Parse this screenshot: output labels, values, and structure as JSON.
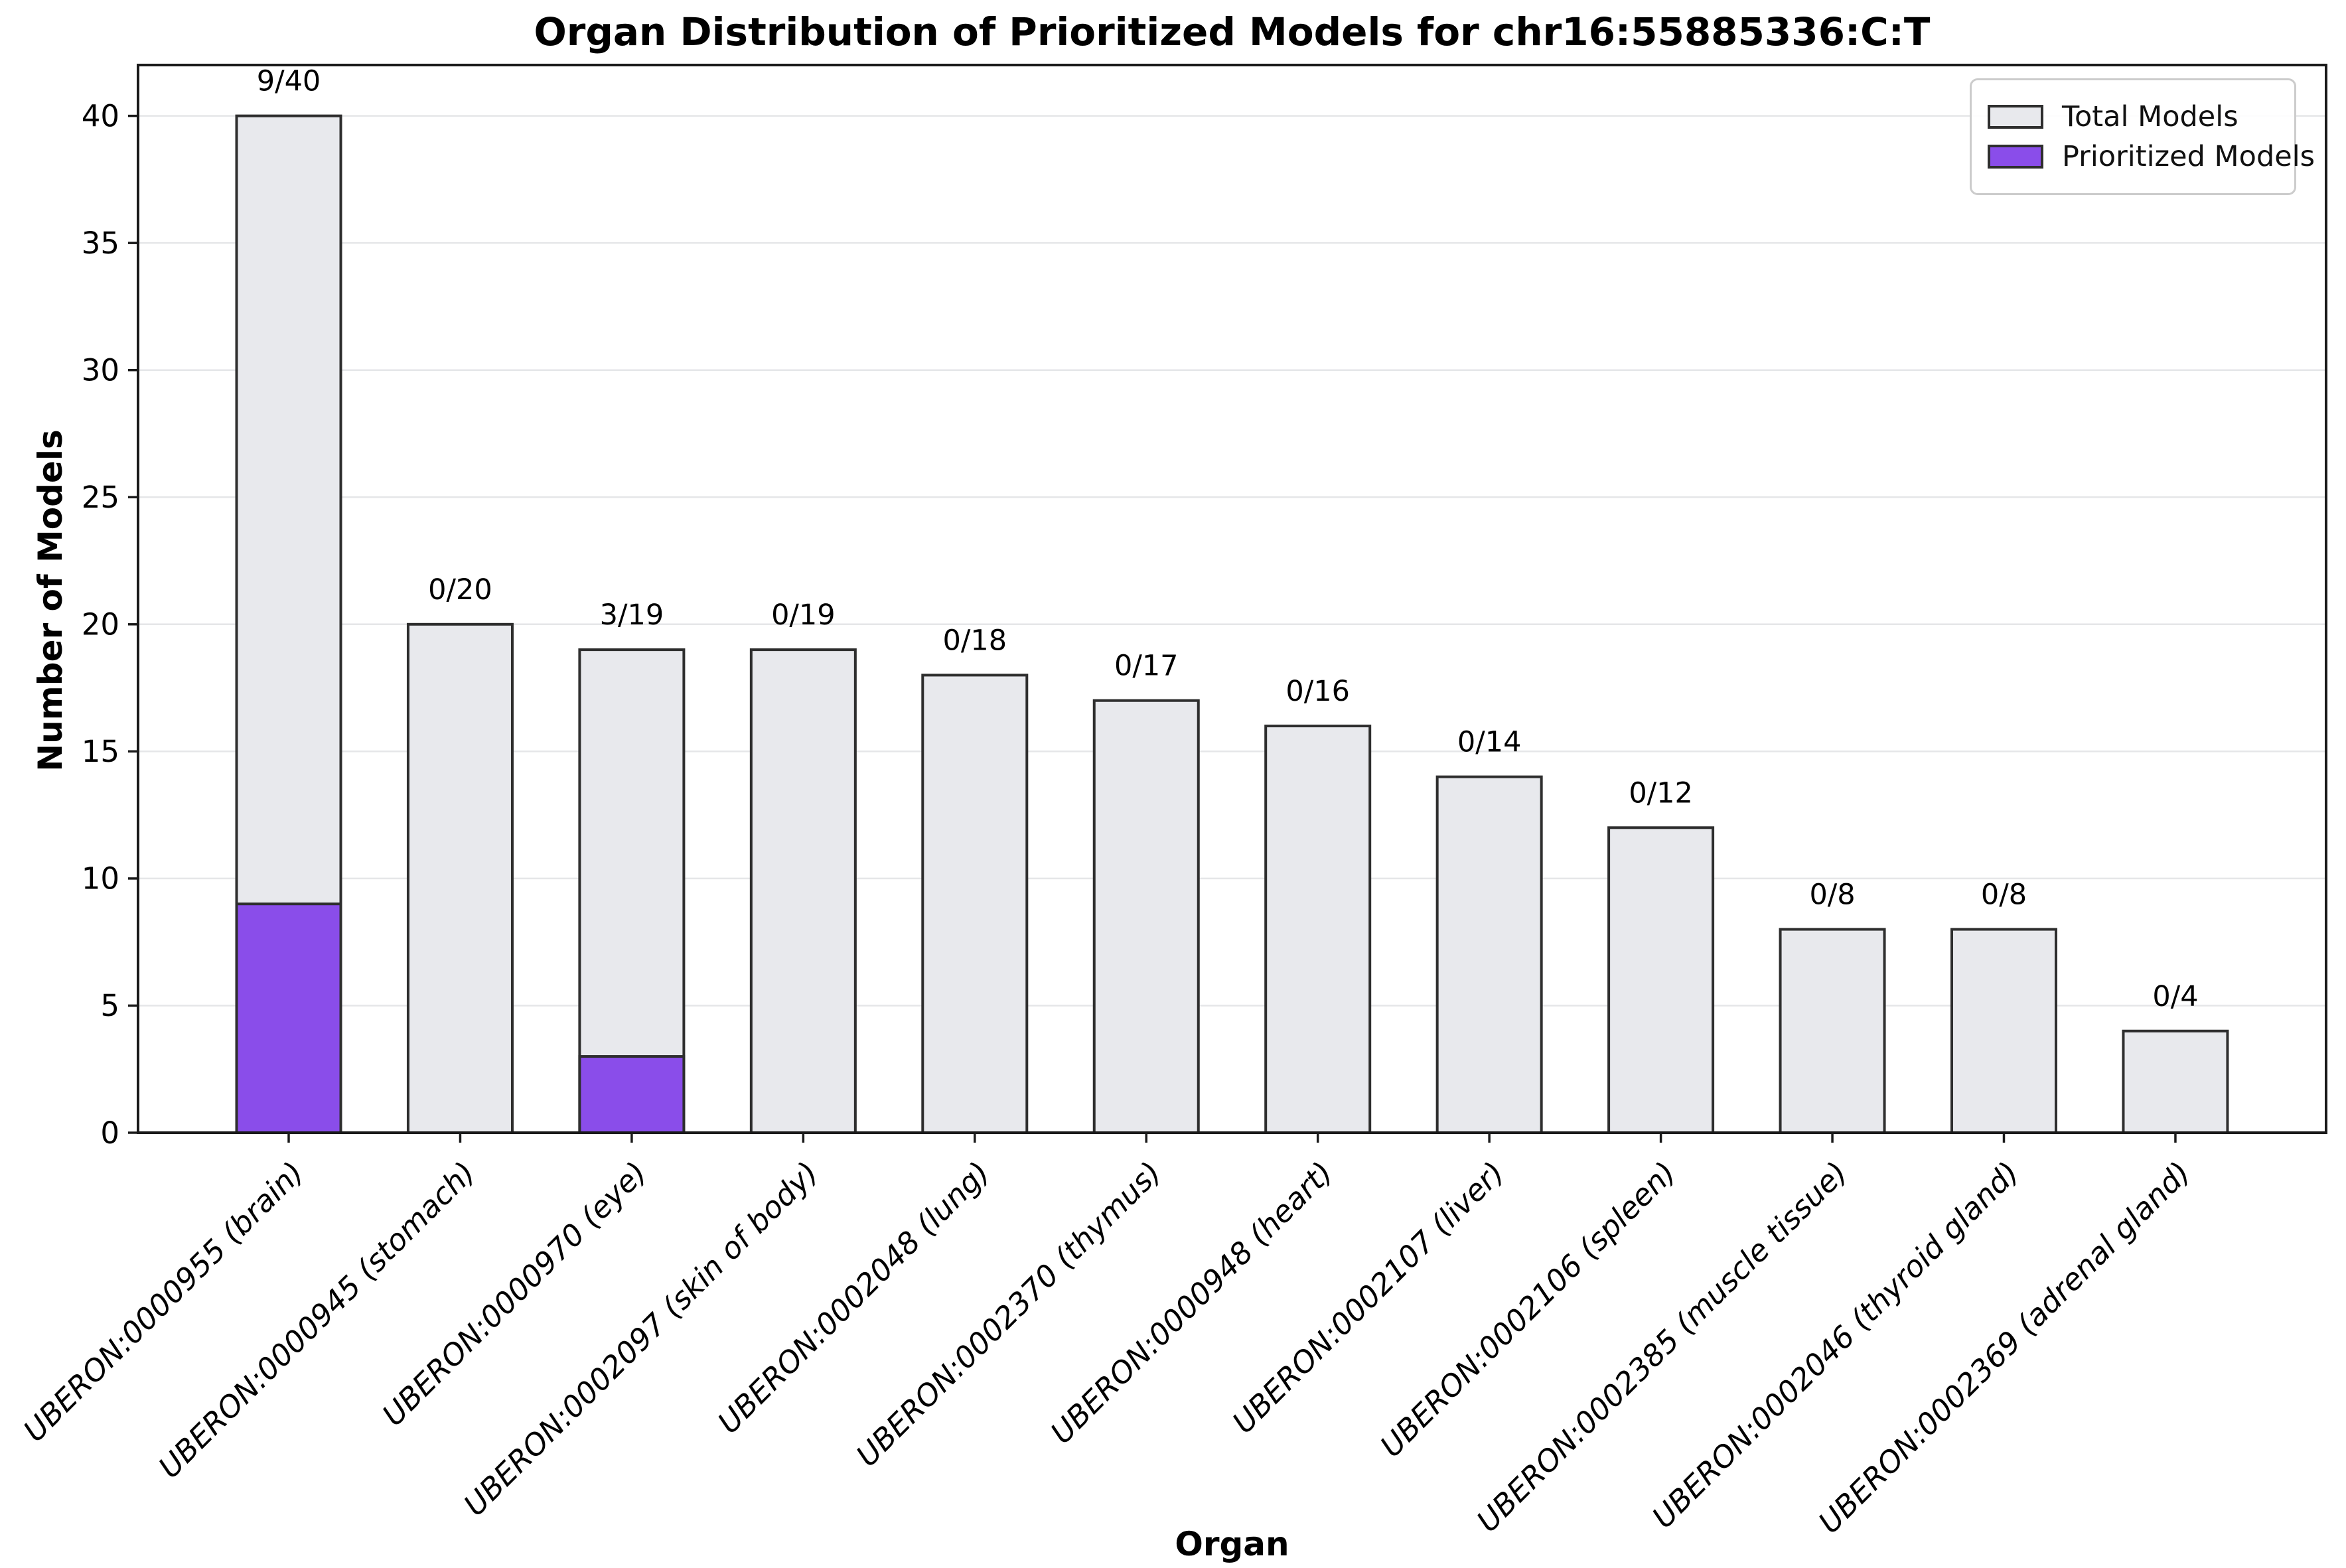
{
  "title": "Organ Distribution of Prioritized Models for chr16:55885336:C:T",
  "chart_data": {
    "type": "bar",
    "title": "Organ Distribution of Prioritized Models for chr16:55885336:C:T",
    "xlabel": "Organ",
    "ylabel": "Number of Models",
    "ylim": [
      0,
      42
    ],
    "yticks": [
      0,
      5,
      10,
      15,
      20,
      25,
      30,
      35,
      40
    ],
    "grid": "horizontal",
    "legend_position": "upper right",
    "categories": [
      "UBERON:0000955 (brain)",
      "UBERON:0000945 (stomach)",
      "UBERON:0000970 (eye)",
      "UBERON:0002097 (skin of body)",
      "UBERON:0002048 (lung)",
      "UBERON:0002370 (thymus)",
      "UBERON:0000948 (heart)",
      "UBERON:0002107 (liver)",
      "UBERON:0002106 (spleen)",
      "UBERON:0002385 (muscle tissue)",
      "UBERON:0002046 (thyroid gland)",
      "UBERON:0002369 (adrenal gland)"
    ],
    "series": [
      {
        "name": "Total Models",
        "color": "#E8E9ED",
        "values": [
          40,
          20,
          19,
          19,
          18,
          17,
          16,
          14,
          12,
          8,
          8,
          4
        ]
      },
      {
        "name": "Prioritized Models",
        "color": "#8A4DEA",
        "values": [
          9,
          0,
          3,
          0,
          0,
          0,
          0,
          0,
          0,
          0,
          0,
          0
        ]
      }
    ],
    "annotations": [
      "9/40",
      "0/20",
      "3/19",
      "0/19",
      "0/18",
      "0/17",
      "0/16",
      "0/14",
      "0/12",
      "0/8",
      "0/8",
      "0/4"
    ],
    "colors": {
      "bar_edge": "#2E2E2E",
      "spine": "#1A1A1A",
      "grid": "#E5E6E8",
      "tick_label": "#000000",
      "background": "#FFFFFF"
    }
  },
  "legend": {
    "items": [
      {
        "label": "Total Models",
        "color": "#E8E9ED"
      },
      {
        "label": "Prioritized Models",
        "color": "#8A4DEA"
      }
    ]
  }
}
